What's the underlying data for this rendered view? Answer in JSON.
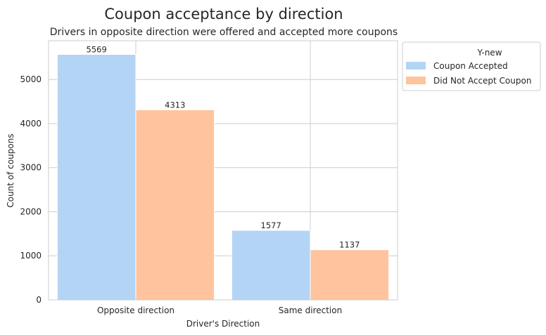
{
  "chart_data": {
    "type": "bar",
    "title": "Coupon acceptance by direction",
    "subtitle": "Drivers in opposite direction were offered and accepted more coupons",
    "xlabel": "Driver's Direction",
    "ylabel": "Count of coupons",
    "categories": [
      "Opposite direction",
      "Same direction"
    ],
    "series": [
      {
        "name": "Coupon Accepted",
        "values": [
          5569,
          1577
        ],
        "color": "#b3d4f5"
      },
      {
        "name": "Did Not Accept Coupon",
        "values": [
          4313,
          1137
        ],
        "color": "#ffc49e"
      }
    ],
    "ylim": [
      0,
      5880
    ],
    "yticks": [
      0,
      1000,
      2000,
      3000,
      4000,
      5000
    ],
    "grid": true,
    "legend": {
      "title": "Y-new",
      "placement": "outside-top-right"
    }
  }
}
